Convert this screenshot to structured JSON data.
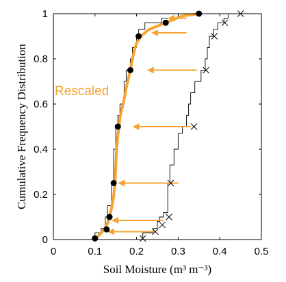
{
  "chart_data": {
    "type": "line",
    "title": "",
    "xlabel": "Soil Moisture (m³ m⁻³)",
    "ylabel": "Cumulative Frequency Distribution",
    "xlim": [
      0,
      0.5
    ],
    "ylim": [
      0,
      1
    ],
    "xticks": [
      "0",
      "0.1",
      "0.2",
      "0.3",
      "0.4",
      "0.5"
    ],
    "yticks": [
      "0",
      "0.2",
      "0.4",
      "0.6",
      "0.8",
      "1"
    ],
    "grid": false,
    "annotation": "Rescaled",
    "colors": {
      "rescaled": "#f5a431",
      "arrow": "#f5a431",
      "original": "#000000",
      "axis": "#000000"
    },
    "series": [
      {
        "key": "original_step",
        "style": "step",
        "points": [
          [
            0.215,
            0.0
          ],
          [
            0.24,
            0.03
          ],
          [
            0.25,
            0.05
          ],
          [
            0.255,
            0.08
          ],
          [
            0.265,
            0.1
          ],
          [
            0.275,
            0.12
          ],
          [
            0.28,
            0.25
          ],
          [
            0.29,
            0.33
          ],
          [
            0.3,
            0.4
          ],
          [
            0.31,
            0.47
          ],
          [
            0.32,
            0.5
          ],
          [
            0.325,
            0.55
          ],
          [
            0.33,
            0.6
          ],
          [
            0.34,
            0.65
          ],
          [
            0.355,
            0.7
          ],
          [
            0.365,
            0.75
          ],
          [
            0.37,
            0.8
          ],
          [
            0.375,
            0.85
          ],
          [
            0.385,
            0.9
          ],
          [
            0.395,
            0.93
          ],
          [
            0.41,
            0.96
          ],
          [
            0.42,
            0.98
          ],
          [
            0.45,
            1.0
          ]
        ]
      },
      {
        "key": "original_markers",
        "style": "x-markers",
        "points": [
          [
            0.215,
            0.005
          ],
          [
            0.245,
            0.035
          ],
          [
            0.262,
            0.065
          ],
          [
            0.278,
            0.1
          ],
          [
            0.282,
            0.25
          ],
          [
            0.338,
            0.5
          ],
          [
            0.367,
            0.75
          ],
          [
            0.387,
            0.9
          ],
          [
            0.412,
            0.96
          ],
          [
            0.45,
            1.0
          ]
        ]
      },
      {
        "key": "rescaled_step",
        "style": "step",
        "points": [
          [
            0.1,
            0.0
          ],
          [
            0.115,
            0.03
          ],
          [
            0.125,
            0.05
          ],
          [
            0.13,
            0.1
          ],
          [
            0.14,
            0.15
          ],
          [
            0.145,
            0.25
          ],
          [
            0.15,
            0.4
          ],
          [
            0.155,
            0.5
          ],
          [
            0.16,
            0.55
          ],
          [
            0.17,
            0.6
          ],
          [
            0.175,
            0.7
          ],
          [
            0.185,
            0.75
          ],
          [
            0.19,
            0.8
          ],
          [
            0.2,
            0.85
          ],
          [
            0.205,
            0.9
          ],
          [
            0.22,
            0.93
          ],
          [
            0.26,
            0.96
          ],
          [
            0.3,
            0.98
          ],
          [
            0.35,
            1.0
          ]
        ]
      },
      {
        "key": "rescaled_curve",
        "style": "thick-line",
        "points": [
          [
            0.1,
            0.0
          ],
          [
            0.11,
            0.02
          ],
          [
            0.12,
            0.04
          ],
          [
            0.13,
            0.07
          ],
          [
            0.135,
            0.1
          ],
          [
            0.14,
            0.14
          ],
          [
            0.145,
            0.19
          ],
          [
            0.148,
            0.25
          ],
          [
            0.15,
            0.32
          ],
          [
            0.152,
            0.4
          ],
          [
            0.155,
            0.46
          ],
          [
            0.158,
            0.5
          ],
          [
            0.16,
            0.54
          ],
          [
            0.165,
            0.58
          ],
          [
            0.17,
            0.62
          ],
          [
            0.175,
            0.67
          ],
          [
            0.18,
            0.71
          ],
          [
            0.185,
            0.75
          ],
          [
            0.19,
            0.8
          ],
          [
            0.195,
            0.84
          ],
          [
            0.2,
            0.87
          ],
          [
            0.21,
            0.9
          ],
          [
            0.23,
            0.93
          ],
          [
            0.27,
            0.96
          ],
          [
            0.31,
            0.99
          ],
          [
            0.35,
            1.0
          ]
        ]
      },
      {
        "key": "rescaled_markers",
        "style": "dot-markers",
        "points": [
          [
            0.1,
            0.005
          ],
          [
            0.128,
            0.045
          ],
          [
            0.135,
            0.1
          ],
          [
            0.145,
            0.25
          ],
          [
            0.155,
            0.5
          ],
          [
            0.185,
            0.75
          ],
          [
            0.205,
            0.9
          ],
          [
            0.27,
            0.96
          ],
          [
            0.35,
            1.0
          ]
        ]
      }
    ],
    "arrows": [
      {
        "from": [
          0.32,
          0.98
        ],
        "to": [
          0.275,
          0.98
        ]
      },
      {
        "from": [
          0.32,
          0.915
        ],
        "to": [
          0.235,
          0.915
        ]
      },
      {
        "from": [
          0.345,
          0.75
        ],
        "to": [
          0.225,
          0.75
        ]
      },
      {
        "from": [
          0.33,
          0.5
        ],
        "to": [
          0.19,
          0.5
        ]
      },
      {
        "from": [
          0.3,
          0.25
        ],
        "to": [
          0.155,
          0.25
        ]
      },
      {
        "from": [
          0.265,
          0.085
        ],
        "to": [
          0.14,
          0.085
        ]
      },
      {
        "from": [
          0.245,
          0.035
        ],
        "to": [
          0.13,
          0.035
        ]
      }
    ]
  }
}
